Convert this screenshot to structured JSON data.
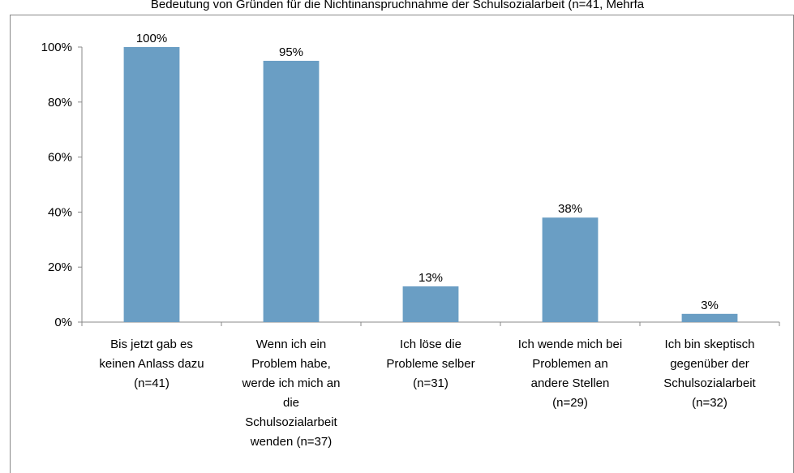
{
  "chart_data": {
    "type": "bar",
    "title": "Bedeutung von Gründen für die Nichtinanspruchnahme der Schulsozialarbeit (n=41, Mehrfa",
    "categories": [
      "Bis jetzt gab es keinen Anlass dazu (n=41)",
      "Wenn ich ein Problem habe, werde ich mich an die Schulsozialarbeit wenden (n=37)",
      "Ich löse die Probleme selber (n=31)",
      "Ich wende mich bei Problemen an andere Stellen (n=29)",
      "Ich bin skeptisch gegenüber der Schulsozialarbeit (n=32)"
    ],
    "values": [
      100,
      95,
      13,
      38,
      3
    ],
    "value_labels": [
      "100%",
      "95%",
      "13%",
      "38%",
      "3%"
    ],
    "color": "#6a9ec4",
    "ylim": [
      0,
      100
    ],
    "yticks": [
      {
        "value": 0,
        "label": "0%"
      },
      {
        "value": 20,
        "label": "20%"
      },
      {
        "value": 40,
        "label": "40%"
      },
      {
        "value": 60,
        "label": "60%"
      },
      {
        "value": 80,
        "label": "80%"
      },
      {
        "value": 100,
        "label": "100%"
      }
    ],
    "grid": false
  }
}
